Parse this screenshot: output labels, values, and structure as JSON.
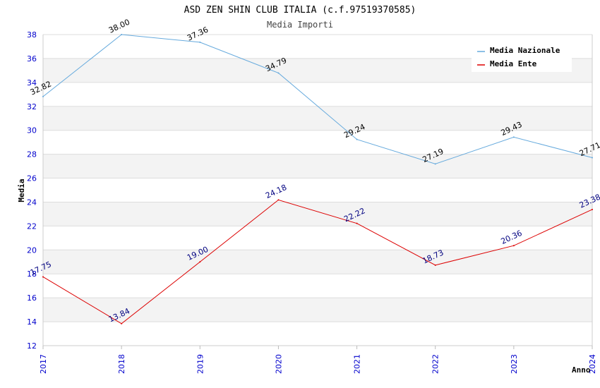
{
  "chart_data": {
    "type": "line",
    "title": "ASD ZEN SHIN CLUB ITALIA (c.f.97519370585)",
    "subtitle": "Media Importi",
    "xlabel": "Anno",
    "ylabel": "Media",
    "x": [
      2017,
      2018,
      2019,
      2020,
      2021,
      2022,
      2023,
      2024
    ],
    "ylim": [
      12,
      38
    ],
    "yticks": [
      12,
      14,
      16,
      18,
      20,
      22,
      24,
      26,
      28,
      30,
      32,
      34,
      36,
      38
    ],
    "grid": true,
    "legend_position": "top-right",
    "series": [
      {
        "name": "Media Nazionale",
        "color": "#66aadd",
        "label_color": "#000000",
        "values": [
          32.82,
          38.0,
          37.36,
          34.79,
          29.24,
          27.19,
          29.43,
          27.71
        ],
        "labels": [
          "32.82",
          "38.00",
          "37.36",
          "34.79",
          "29.24",
          "27.19",
          "29.43",
          "27.71"
        ]
      },
      {
        "name": "Media Ente",
        "color": "#dd0000",
        "label_color": "#000080",
        "values": [
          17.75,
          13.84,
          19.0,
          24.18,
          22.22,
          18.73,
          20.36,
          23.38
        ],
        "labels": [
          "17.75",
          "13.84",
          "19.00",
          "24.18",
          "22.22",
          "18.73",
          "20.36",
          "23.38"
        ]
      }
    ]
  }
}
